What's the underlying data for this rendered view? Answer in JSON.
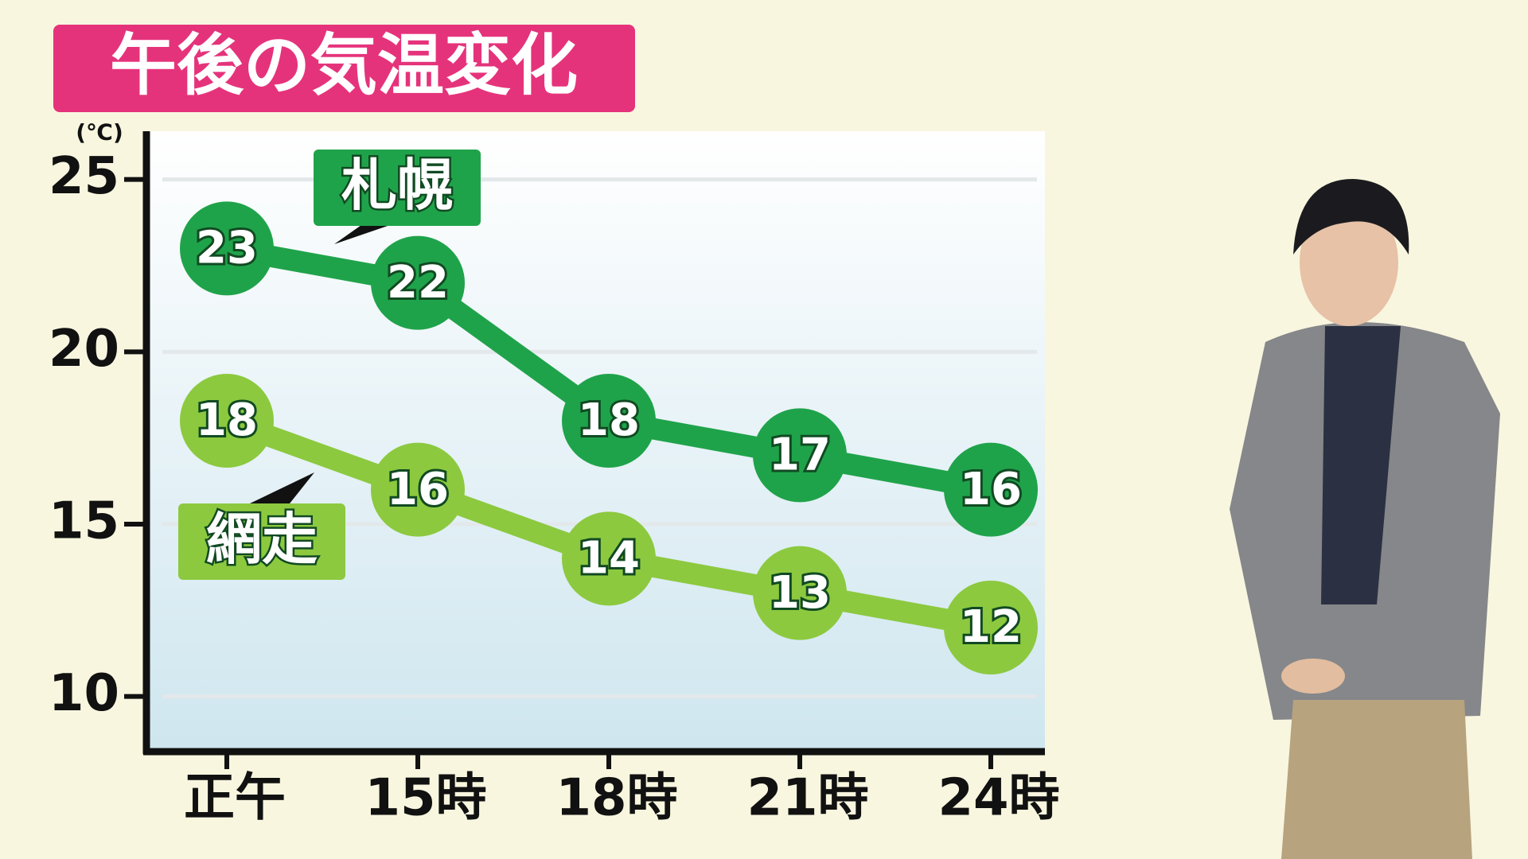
{
  "chart_data": {
    "type": "line",
    "title": "午後の気温変化",
    "y_unit": "(℃)",
    "categories": [
      "正午",
      "15時",
      "18時",
      "21時",
      "24時"
    ],
    "series": [
      {
        "name": "札幌",
        "color": "#1fa34a",
        "values": [
          23,
          22,
          18,
          17,
          16
        ]
      },
      {
        "name": "網走",
        "color": "#8cc93f",
        "values": [
          18,
          16,
          14,
          13,
          12
        ]
      }
    ],
    "ylim": [
      8.4,
      26.4
    ],
    "yticks": [
      10,
      15,
      20,
      25
    ],
    "grid": true
  }
}
